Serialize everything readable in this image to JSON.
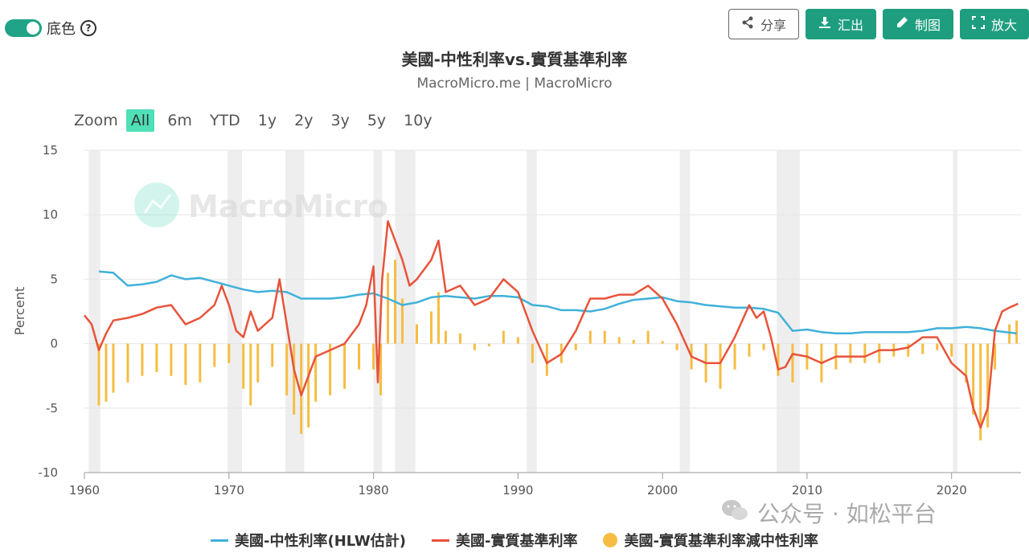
{
  "toggle": {
    "label": "底色",
    "help": "?"
  },
  "buttons": {
    "share": "分享",
    "export": "汇出",
    "draw": "制图",
    "expand": "放大"
  },
  "icons": {
    "share": "share-icon",
    "export": "download-icon",
    "draw": "pencil-icon",
    "expand": "expand-icon",
    "help": "help-icon"
  },
  "zoom": {
    "label": "Zoom",
    "options": [
      "All",
      "6m",
      "YTD",
      "1y",
      "2y",
      "3y",
      "5y",
      "10y"
    ],
    "active": "All"
  },
  "watermark": "MacroMicro",
  "wechat": "公众号 · 如松平台",
  "colors": {
    "neutral": "#3fb1d9",
    "real": "#e8533a",
    "diff": "#f5bd42",
    "recession": "#eeeeee",
    "accent": "#1e9e7f"
  },
  "chart_data": {
    "type": "line",
    "title": "美國-中性利率vs.實質基準利率",
    "subtitle": "MacroMicro.me | MacroMicro",
    "ylabel": "Percent",
    "ylim": [
      -10,
      15
    ],
    "yticks": [
      "15",
      "10",
      "5",
      "0",
      "-5",
      "-10"
    ],
    "xticks": [
      "1960",
      "1970",
      "1980",
      "1990",
      "2000",
      "2010",
      "2020"
    ],
    "xlim": [
      1960,
      2024.8
    ],
    "grid": true,
    "legend_position": "bottom",
    "recessions": [
      [
        1960.3,
        1961.1
      ],
      [
        1969.9,
        1970.9
      ],
      [
        1973.9,
        1975.2
      ],
      [
        1980.0,
        1980.6
      ],
      [
        1981.5,
        1982.9
      ],
      [
        1990.6,
        1991.3
      ],
      [
        2001.2,
        2001.9
      ],
      [
        2007.9,
        2009.5
      ],
      [
        2020.1,
        2020.4
      ]
    ],
    "series": [
      {
        "name": "美國-中性利率(HLW估計)",
        "kind": "line",
        "x": [
          1961,
          1962,
          1963,
          1964,
          1965,
          1966,
          1967,
          1968,
          1969,
          1970,
          1971,
          1972,
          1973,
          1974,
          1975,
          1976,
          1977,
          1978,
          1979,
          1980,
          1981,
          1982,
          1983,
          1984,
          1985,
          1986,
          1987,
          1988,
          1989,
          1990,
          1991,
          1992,
          1993,
          1994,
          1995,
          1996,
          1997,
          1998,
          1999,
          2000,
          2001,
          2002,
          2003,
          2004,
          2005,
          2006,
          2007,
          2008,
          2009,
          2010,
          2011,
          2012,
          2013,
          2014,
          2015,
          2016,
          2017,
          2018,
          2019,
          2020,
          2021,
          2022,
          2023,
          2024.5
        ],
        "y": [
          5.6,
          5.5,
          4.5,
          4.6,
          4.8,
          5.3,
          5.0,
          5.1,
          4.8,
          4.5,
          4.2,
          4.0,
          4.1,
          4.0,
          3.5,
          3.5,
          3.5,
          3.6,
          3.8,
          3.9,
          3.5,
          3.0,
          3.2,
          3.6,
          3.7,
          3.6,
          3.5,
          3.7,
          3.7,
          3.6,
          3.0,
          2.9,
          2.6,
          2.6,
          2.5,
          2.7,
          3.1,
          3.4,
          3.5,
          3.6,
          3.3,
          3.2,
          3.0,
          2.9,
          2.8,
          2.8,
          2.7,
          2.4,
          1.0,
          1.1,
          0.9,
          0.8,
          0.8,
          0.9,
          0.9,
          0.9,
          0.9,
          1.0,
          1.2,
          1.2,
          1.3,
          1.2,
          1.0,
          0.8
        ]
      },
      {
        "name": "美國-實質基準利率",
        "kind": "line",
        "x": [
          1960,
          1960.5,
          1961,
          1961.5,
          1962,
          1963,
          1964,
          1965,
          1966,
          1967,
          1968,
          1969,
          1969.5,
          1970,
          1970.5,
          1971,
          1971.5,
          1972,
          1973,
          1973.5,
          1974,
          1974.5,
          1975,
          1975.5,
          1976,
          1977,
          1978,
          1979,
          1979.5,
          1980,
          1980.3,
          1980.6,
          1981,
          1981.5,
          1982,
          1982.5,
          1983,
          1984,
          1984.5,
          1985,
          1986,
          1987,
          1988,
          1989,
          1990,
          1991,
          1992,
          1993,
          1994,
          1995,
          1996,
          1997,
          1998,
          1999,
          2000,
          2001,
          2002,
          2003,
          2004,
          2005,
          2006,
          2006.5,
          2007,
          2007.5,
          2008,
          2008.5,
          2009,
          2010,
          2011,
          2012,
          2013,
          2014,
          2015,
          2016,
          2017,
          2018,
          2019,
          2020,
          2021,
          2021.5,
          2022,
          2022.5,
          2023,
          2023.5,
          2024,
          2024.6
        ],
        "y": [
          2.2,
          1.5,
          -0.5,
          0.8,
          1.8,
          2.0,
          2.3,
          2.8,
          3.0,
          1.5,
          2.0,
          3.0,
          4.5,
          3.0,
          1.0,
          0.5,
          2.5,
          1.0,
          2.0,
          5.0,
          1.5,
          -2.0,
          -4.0,
          -2.5,
          -1.0,
          -0.5,
          0.0,
          1.5,
          3.0,
          6.0,
          -3.0,
          5.0,
          9.5,
          8.0,
          6.5,
          4.5,
          5.0,
          6.5,
          8.0,
          4.0,
          4.5,
          3.0,
          3.5,
          5.0,
          4.0,
          1.0,
          -1.5,
          -0.8,
          1.0,
          3.5,
          3.5,
          3.8,
          3.8,
          4.5,
          3.5,
          1.5,
          -1.0,
          -1.5,
          -1.5,
          0.5,
          3.0,
          2.0,
          2.5,
          0.5,
          -2.0,
          -1.8,
          -0.8,
          -1.0,
          -1.5,
          -1.0,
          -1.0,
          -1.0,
          -0.5,
          -0.5,
          -0.3,
          0.5,
          0.5,
          -1.5,
          -2.5,
          -5.0,
          -6.5,
          -5.0,
          1.0,
          2.5,
          2.8,
          3.1
        ]
      },
      {
        "name": "美國-實質基準利率減中性利率",
        "kind": "bar",
        "x": [
          1961,
          1961.5,
          1962,
          1963,
          1964,
          1965,
          1966,
          1967,
          1968,
          1969,
          1970,
          1971,
          1971.5,
          1972,
          1973,
          1974,
          1974.5,
          1975,
          1975.5,
          1976,
          1977,
          1978,
          1979,
          1980,
          1980.5,
          1981,
          1981.5,
          1982,
          1983,
          1984,
          1984.5,
          1985,
          1986,
          1987,
          1988,
          1989,
          1990,
          1991,
          1992,
          1993,
          1994,
          1995,
          1996,
          1997,
          1998,
          1999,
          2000,
          2001,
          2002,
          2003,
          2004,
          2005,
          2006,
          2007,
          2008,
          2009,
          2010,
          2011,
          2012,
          2013,
          2014,
          2015,
          2016,
          2017,
          2018,
          2019,
          2020,
          2021,
          2021.5,
          2022,
          2022.5,
          2023,
          2024,
          2024.5
        ],
        "y": [
          -4.8,
          -4.5,
          -3.8,
          -3.0,
          -2.5,
          -2.2,
          -2.5,
          -3.2,
          -3.0,
          -1.8,
          -1.5,
          -3.5,
          -4.8,
          -3.0,
          -1.8,
          -4.0,
          -5.5,
          -7.0,
          -6.5,
          -4.5,
          -4.0,
          -3.5,
          -2.0,
          -2.0,
          -4.0,
          5.5,
          6.5,
          3.5,
          1.5,
          2.5,
          4.0,
          1.0,
          0.8,
          -0.5,
          -0.2,
          1.0,
          0.5,
          -1.5,
          -2.5,
          -1.5,
          -0.5,
          1.0,
          1.0,
          0.5,
          0.3,
          1.0,
          0.2,
          -0.5,
          -2.0,
          -3.0,
          -3.5,
          -2.0,
          -1.0,
          -0.5,
          -2.5,
          -3.0,
          -2.0,
          -3.0,
          -2.0,
          -1.5,
          -1.5,
          -1.5,
          -1.0,
          -1.0,
          -0.8,
          -0.5,
          -1.0,
          -3.0,
          -5.5,
          -7.5,
          -6.5,
          -2.0,
          1.5,
          1.8
        ]
      }
    ]
  }
}
